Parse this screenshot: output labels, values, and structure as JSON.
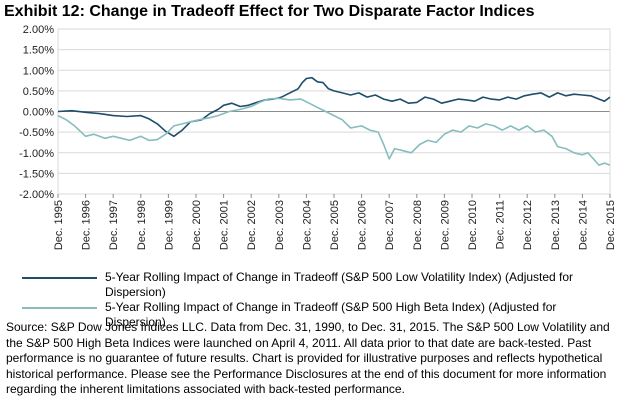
{
  "title": "Exhibit 12: Change in Tradeoff Effect for Two Disparate Factor Indices",
  "colors": {
    "low_vol": "#1f4e6b",
    "high_beta": "#86bdbf",
    "grid": "#d9d9d9",
    "axis": "#8c8c8c"
  },
  "chart_data": {
    "type": "line",
    "title": "Exhibit 12: Change in Tradeoff Effect for Two Disparate Factor Indices",
    "xlabel": "",
    "ylabel": "",
    "ylim": [
      -2.0,
      2.0
    ],
    "xlim": [
      1995,
      2015
    ],
    "grid": "horizontal",
    "y_ticks": [
      "2.00%",
      "1.50%",
      "1.00%",
      "0.50%",
      "0.00%",
      "-0.50%",
      "-1.00%",
      "-1.50%",
      "-2.00%"
    ],
    "y_tick_values": [
      2.0,
      1.5,
      1.0,
      0.5,
      0.0,
      -0.5,
      -1.0,
      -1.5,
      -2.0
    ],
    "x_ticks": [
      "Dec. 1995",
      "Dec. 1996",
      "Dec. 1997",
      "Dec. 1998",
      "Dec. 1999",
      "Dec. 2000",
      "Dec. 2001",
      "Dec. 2002",
      "Dec. 2003",
      "Dec. 2004",
      "Dec. 2005",
      "Dec. 2006",
      "Dec. 2007",
      "Dec. 2008",
      "Dec. 2009",
      "Dec. 2010",
      "Dec. 2011",
      "Dec. 2012",
      "Dec. 2013",
      "Dec. 2014",
      "Dec. 2015"
    ],
    "x_tick_values": [
      1995,
      1996,
      1997,
      1998,
      1999,
      2000,
      2001,
      2002,
      2003,
      2004,
      2005,
      2006,
      2007,
      2008,
      2009,
      2010,
      2011,
      2012,
      2013,
      2014,
      2015
    ],
    "legend_position": "bottom",
    "series": [
      {
        "name": "5-Year Rolling Impact of Change in Tradeoff (S&P 500 Low Volatility Index) (Adjusted for Dispersion)",
        "color": "#1f4e6b",
        "x": [
          1995,
          1995.5,
          1996,
          1996.5,
          1997,
          1997.5,
          1998,
          1998.3,
          1998.6,
          1998.9,
          1999.2,
          1999.5,
          1999.8,
          2000.2,
          2000.5,
          2000.8,
          2001.0,
          2001.3,
          2001.6,
          2001.9,
          2002.2,
          2002.5,
          2002.8,
          2003.1,
          2003.4,
          2003.7,
          2003.85,
          2004.0,
          2004.2,
          2004.4,
          2004.6,
          2004.8,
          2005.0,
          2005.3,
          2005.6,
          2005.9,
          2006.2,
          2006.5,
          2006.8,
          2007.1,
          2007.4,
          2007.7,
          2008.0,
          2008.3,
          2008.6,
          2008.9,
          2009.2,
          2009.5,
          2009.8,
          2010.1,
          2010.4,
          2010.7,
          2011.0,
          2011.3,
          2011.6,
          2011.9,
          2012.2,
          2012.5,
          2012.8,
          2013.1,
          2013.4,
          2013.7,
          2014.0,
          2014.3,
          2014.6,
          2014.8,
          2015.0
        ],
        "values": [
          0.0,
          0.02,
          -0.02,
          -0.05,
          -0.1,
          -0.12,
          -0.1,
          -0.18,
          -0.3,
          -0.48,
          -0.6,
          -0.45,
          -0.25,
          -0.2,
          -0.05,
          0.05,
          0.15,
          0.2,
          0.12,
          0.15,
          0.22,
          0.28,
          0.3,
          0.35,
          0.45,
          0.55,
          0.7,
          0.8,
          0.82,
          0.72,
          0.7,
          0.55,
          0.5,
          0.45,
          0.4,
          0.45,
          0.35,
          0.4,
          0.3,
          0.25,
          0.3,
          0.2,
          0.22,
          0.35,
          0.3,
          0.2,
          0.25,
          0.3,
          0.28,
          0.25,
          0.35,
          0.3,
          0.28,
          0.35,
          0.3,
          0.38,
          0.42,
          0.45,
          0.35,
          0.45,
          0.38,
          0.42,
          0.4,
          0.38,
          0.3,
          0.25,
          0.35
        ]
      },
      {
        "name": "5-Year Rolling Impact of Change in Tradeoff (S&P 500 High Beta Index) (Adjusted for Dispersion)",
        "color": "#86bdbf",
        "x": [
          1995,
          1995.3,
          1995.6,
          1996.0,
          1996.3,
          1996.7,
          1997.0,
          1997.3,
          1997.6,
          1998.0,
          1998.3,
          1998.6,
          1998.9,
          1999.2,
          1999.5,
          1999.8,
          2000.1,
          2000.5,
          2000.8,
          2001.2,
          2001.6,
          2002.0,
          2002.3,
          2002.6,
          2003.0,
          2003.4,
          2003.8,
          2004.1,
          2004.4,
          2004.7,
          2005.0,
          2005.3,
          2005.6,
          2006.0,
          2006.3,
          2006.6,
          2006.8,
          2007.0,
          2007.2,
          2007.5,
          2007.8,
          2008.1,
          2008.4,
          2008.7,
          2009.0,
          2009.3,
          2009.6,
          2009.9,
          2010.2,
          2010.5,
          2010.8,
          2011.1,
          2011.4,
          2011.7,
          2012.0,
          2012.3,
          2012.6,
          2012.9,
          2013.1,
          2013.4,
          2013.7,
          2014.0,
          2014.2,
          2014.4,
          2014.6,
          2014.8,
          2015.0
        ],
        "values": [
          -0.1,
          -0.2,
          -0.35,
          -0.6,
          -0.55,
          -0.65,
          -0.6,
          -0.65,
          -0.7,
          -0.6,
          -0.7,
          -0.68,
          -0.55,
          -0.35,
          -0.3,
          -0.25,
          -0.2,
          -0.15,
          -0.1,
          0.0,
          0.05,
          0.12,
          0.22,
          0.3,
          0.32,
          0.28,
          0.3,
          0.2,
          0.1,
          0.0,
          -0.1,
          -0.2,
          -0.4,
          -0.35,
          -0.45,
          -0.5,
          -0.8,
          -1.15,
          -0.9,
          -0.95,
          -1.0,
          -0.8,
          -0.7,
          -0.75,
          -0.55,
          -0.45,
          -0.5,
          -0.35,
          -0.4,
          -0.3,
          -0.35,
          -0.45,
          -0.35,
          -0.45,
          -0.35,
          -0.5,
          -0.45,
          -0.6,
          -0.85,
          -0.9,
          -1.0,
          -1.05,
          -1.0,
          -1.15,
          -1.3,
          -1.25,
          -1.3
        ]
      }
    ]
  },
  "legend": [
    {
      "label": "5-Year Rolling Impact of Change in Tradeoff (S&P 500 Low Volatility Index) (Adjusted for Dispersion)"
    },
    {
      "label": "5-Year Rolling Impact of Change in Tradeoff (S&P 500 High Beta Index) (Adjusted for Dispersion)"
    }
  ],
  "source": "Source: S&P Dow Jones Indices LLC.  Data from Dec. 31, 1990, to Dec. 31, 2015. The S&P 500 Low Volatility and the S&P 500 High Beta Indices were launched on April 4, 2011.  All data prior to that date are back-tested.   Past performance is no guarantee of future results.  Chart is provided for illustrative purposes and reflects hypothetical historical performance.  Please see the Performance Disclosures at the end of this document for more information regarding the inherent limitations associated with back-tested performance."
}
